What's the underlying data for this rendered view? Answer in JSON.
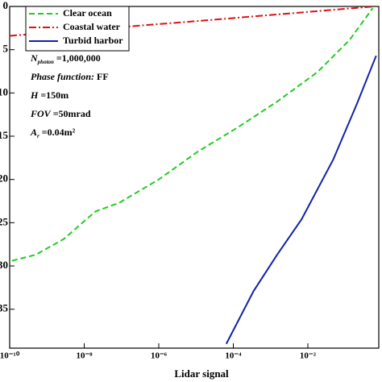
{
  "chart_data": {
    "type": "line",
    "xlabel": "Lidar signal",
    "xscale": "log",
    "xlim": [
      1e-10,
      0.8
    ],
    "ylim": [
      0,
      39.5
    ],
    "y_inverted": true,
    "xticks": [
      {
        "value": 1e-10,
        "label": "10⁻¹⁰"
      },
      {
        "value": 1e-08,
        "label": "10⁻⁸"
      },
      {
        "value": 1e-06,
        "label": "10⁻⁶"
      },
      {
        "value": 0.0001,
        "label": "10⁻⁴"
      },
      {
        "value": 0.01,
        "label": "10⁻²"
      }
    ],
    "yticks": [
      0,
      5,
      10,
      15,
      20,
      25,
      30,
      35
    ],
    "legend": "upper left",
    "series": [
      {
        "name": "Clear ocean",
        "color": "#22cc22",
        "dash": "dashed",
        "x": [
          1.15e-10,
          5e-10,
          2.8e-09,
          2e-08,
          8.7e-08,
          1e-06,
          1.1e-05,
          0.00013,
          0.0015,
          0.018,
          0.13,
          0.55
        ],
        "values": [
          29.4,
          28.7,
          26.9,
          23.7,
          22.7,
          20,
          16.8,
          14,
          11,
          7.6,
          3.9,
          0.2
        ]
      },
      {
        "name": "Coastal water",
        "color": "#dd1111",
        "dash": "dashdot",
        "x": [
          1e-10,
          1e-05,
          0.6
        ],
        "values": [
          3.4,
          1.7,
          0
        ]
      },
      {
        "name": "Turbid harbor",
        "color": "#1122aa",
        "dash": "solid",
        "x": [
          6.5e-05,
          0.00035,
          0.0015,
          0.0068,
          0.048,
          0.21,
          0.68
        ],
        "values": [
          39.0,
          32.9,
          28.7,
          24.6,
          17.7,
          11.2,
          5.7
        ]
      }
    ],
    "annotations": [
      {
        "main": "N",
        "sub": "photon",
        "rest": " =1,000,000"
      },
      {
        "main": "Phase  function:",
        "sub": "",
        "rest": " FF"
      },
      {
        "main": "H",
        "sub": "",
        "rest": " =150m"
      },
      {
        "main": "FOV",
        "sub": "",
        "rest": " =50mrad"
      },
      {
        "main": "A",
        "sub": "r",
        "rest": " =0.04m²"
      }
    ]
  }
}
